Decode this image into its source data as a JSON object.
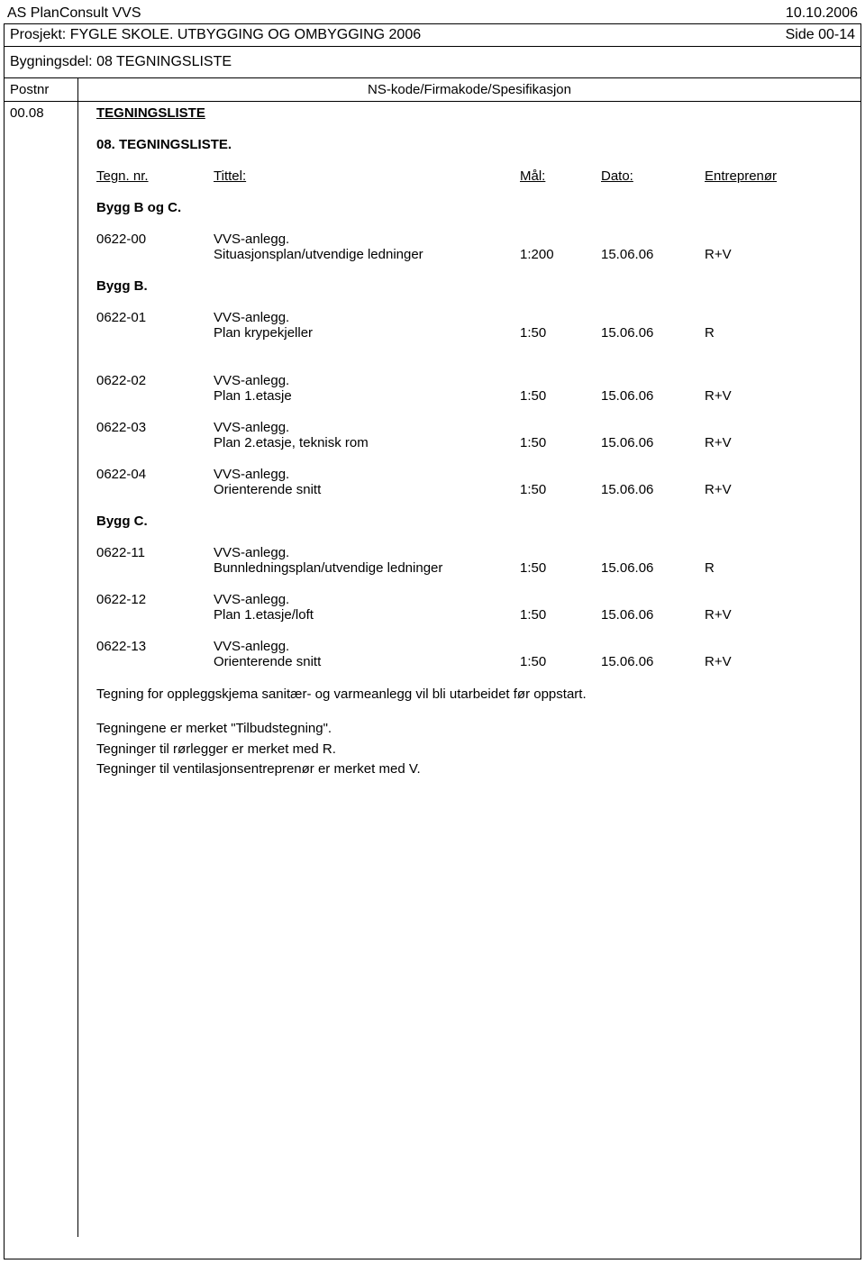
{
  "header": {
    "company": "AS PlanConsult VVS",
    "date": "10.10.2006",
    "project": "Prosjekt: FYGLE SKOLE. UTBYGGING OG OMBYGGING 2006",
    "page": "Side 00-14",
    "building_part": "Bygningsdel: 08 TEGNINGSLISTE",
    "postnr_label": "Postnr",
    "spec_label": "NS-kode/Firmakode/Spesifikasjon"
  },
  "content": {
    "postnr": "00.08",
    "section_title": "TEGNINGSLISTE",
    "subsection": "08.    TEGNINGSLISTE.",
    "title_row": {
      "c1": "Tegn. nr.",
      "c2": "Tittel:",
      "c3": "Mål:",
      "c4": "Dato:",
      "c5": "Entreprenør"
    },
    "groups": [
      {
        "title": "Bygg B og C.",
        "entries": [
          {
            "code": "0622-00",
            "desc1": "VVS-anlegg.",
            "desc2": "Situasjonsplan/utvendige ledninger",
            "scale": "1:200",
            "date": "15.06.06",
            "contractor": "R+V"
          }
        ]
      },
      {
        "title": "Bygg B.",
        "entries": [
          {
            "code": "0622-01",
            "desc1": "VVS-anlegg.",
            "desc2": "Plan krypekjeller",
            "scale": "1:50",
            "date": "15.06.06",
            "contractor": "R"
          }
        ]
      },
      {
        "title": "",
        "entries": [
          {
            "code": "0622-02",
            "desc1": "VVS-anlegg.",
            "desc2": "Plan 1.etasje",
            "scale": "1:50",
            "date": "15.06.06",
            "contractor": "R+V"
          },
          {
            "code": "0622-03",
            "desc1": "VVS-anlegg.",
            "desc2": "Plan 2.etasje, teknisk rom",
            "scale": "1:50",
            "date": "15.06.06",
            "contractor": "R+V"
          },
          {
            "code": "0622-04",
            "desc1": "VVS-anlegg.",
            "desc2": "Orienterende snitt",
            "scale": "1:50",
            "date": "15.06.06",
            "contractor": "R+V"
          }
        ]
      },
      {
        "title": "Bygg C.",
        "entries": [
          {
            "code": "0622-11",
            "desc1": "VVS-anlegg.",
            "desc2": "Bunnledningsplan/utvendige ledninger",
            "scale": "1:50",
            "date": "15.06.06",
            "contractor": "R"
          },
          {
            "code": "0622-12",
            "desc1": "VVS-anlegg.",
            "desc2": "Plan 1.etasje/loft",
            "scale": "1:50",
            "date": "15.06.06",
            "contractor": "R+V"
          },
          {
            "code": "0622-13",
            "desc1": "VVS-anlegg.",
            "desc2": "Orienterende snitt",
            "scale": "1:50",
            "date": "15.06.06",
            "contractor": "R+V"
          }
        ]
      }
    ],
    "notes": [
      "Tegning for oppleggskjema sanitær- og varmeanlegg vil bli utarbeidet før oppstart.",
      "Tegningene er merket \"Tilbudstegning\".",
      "Tegninger til rørlegger er merket med R.",
      "Tegninger til ventilasjonsentreprenør er merket med V."
    ]
  }
}
